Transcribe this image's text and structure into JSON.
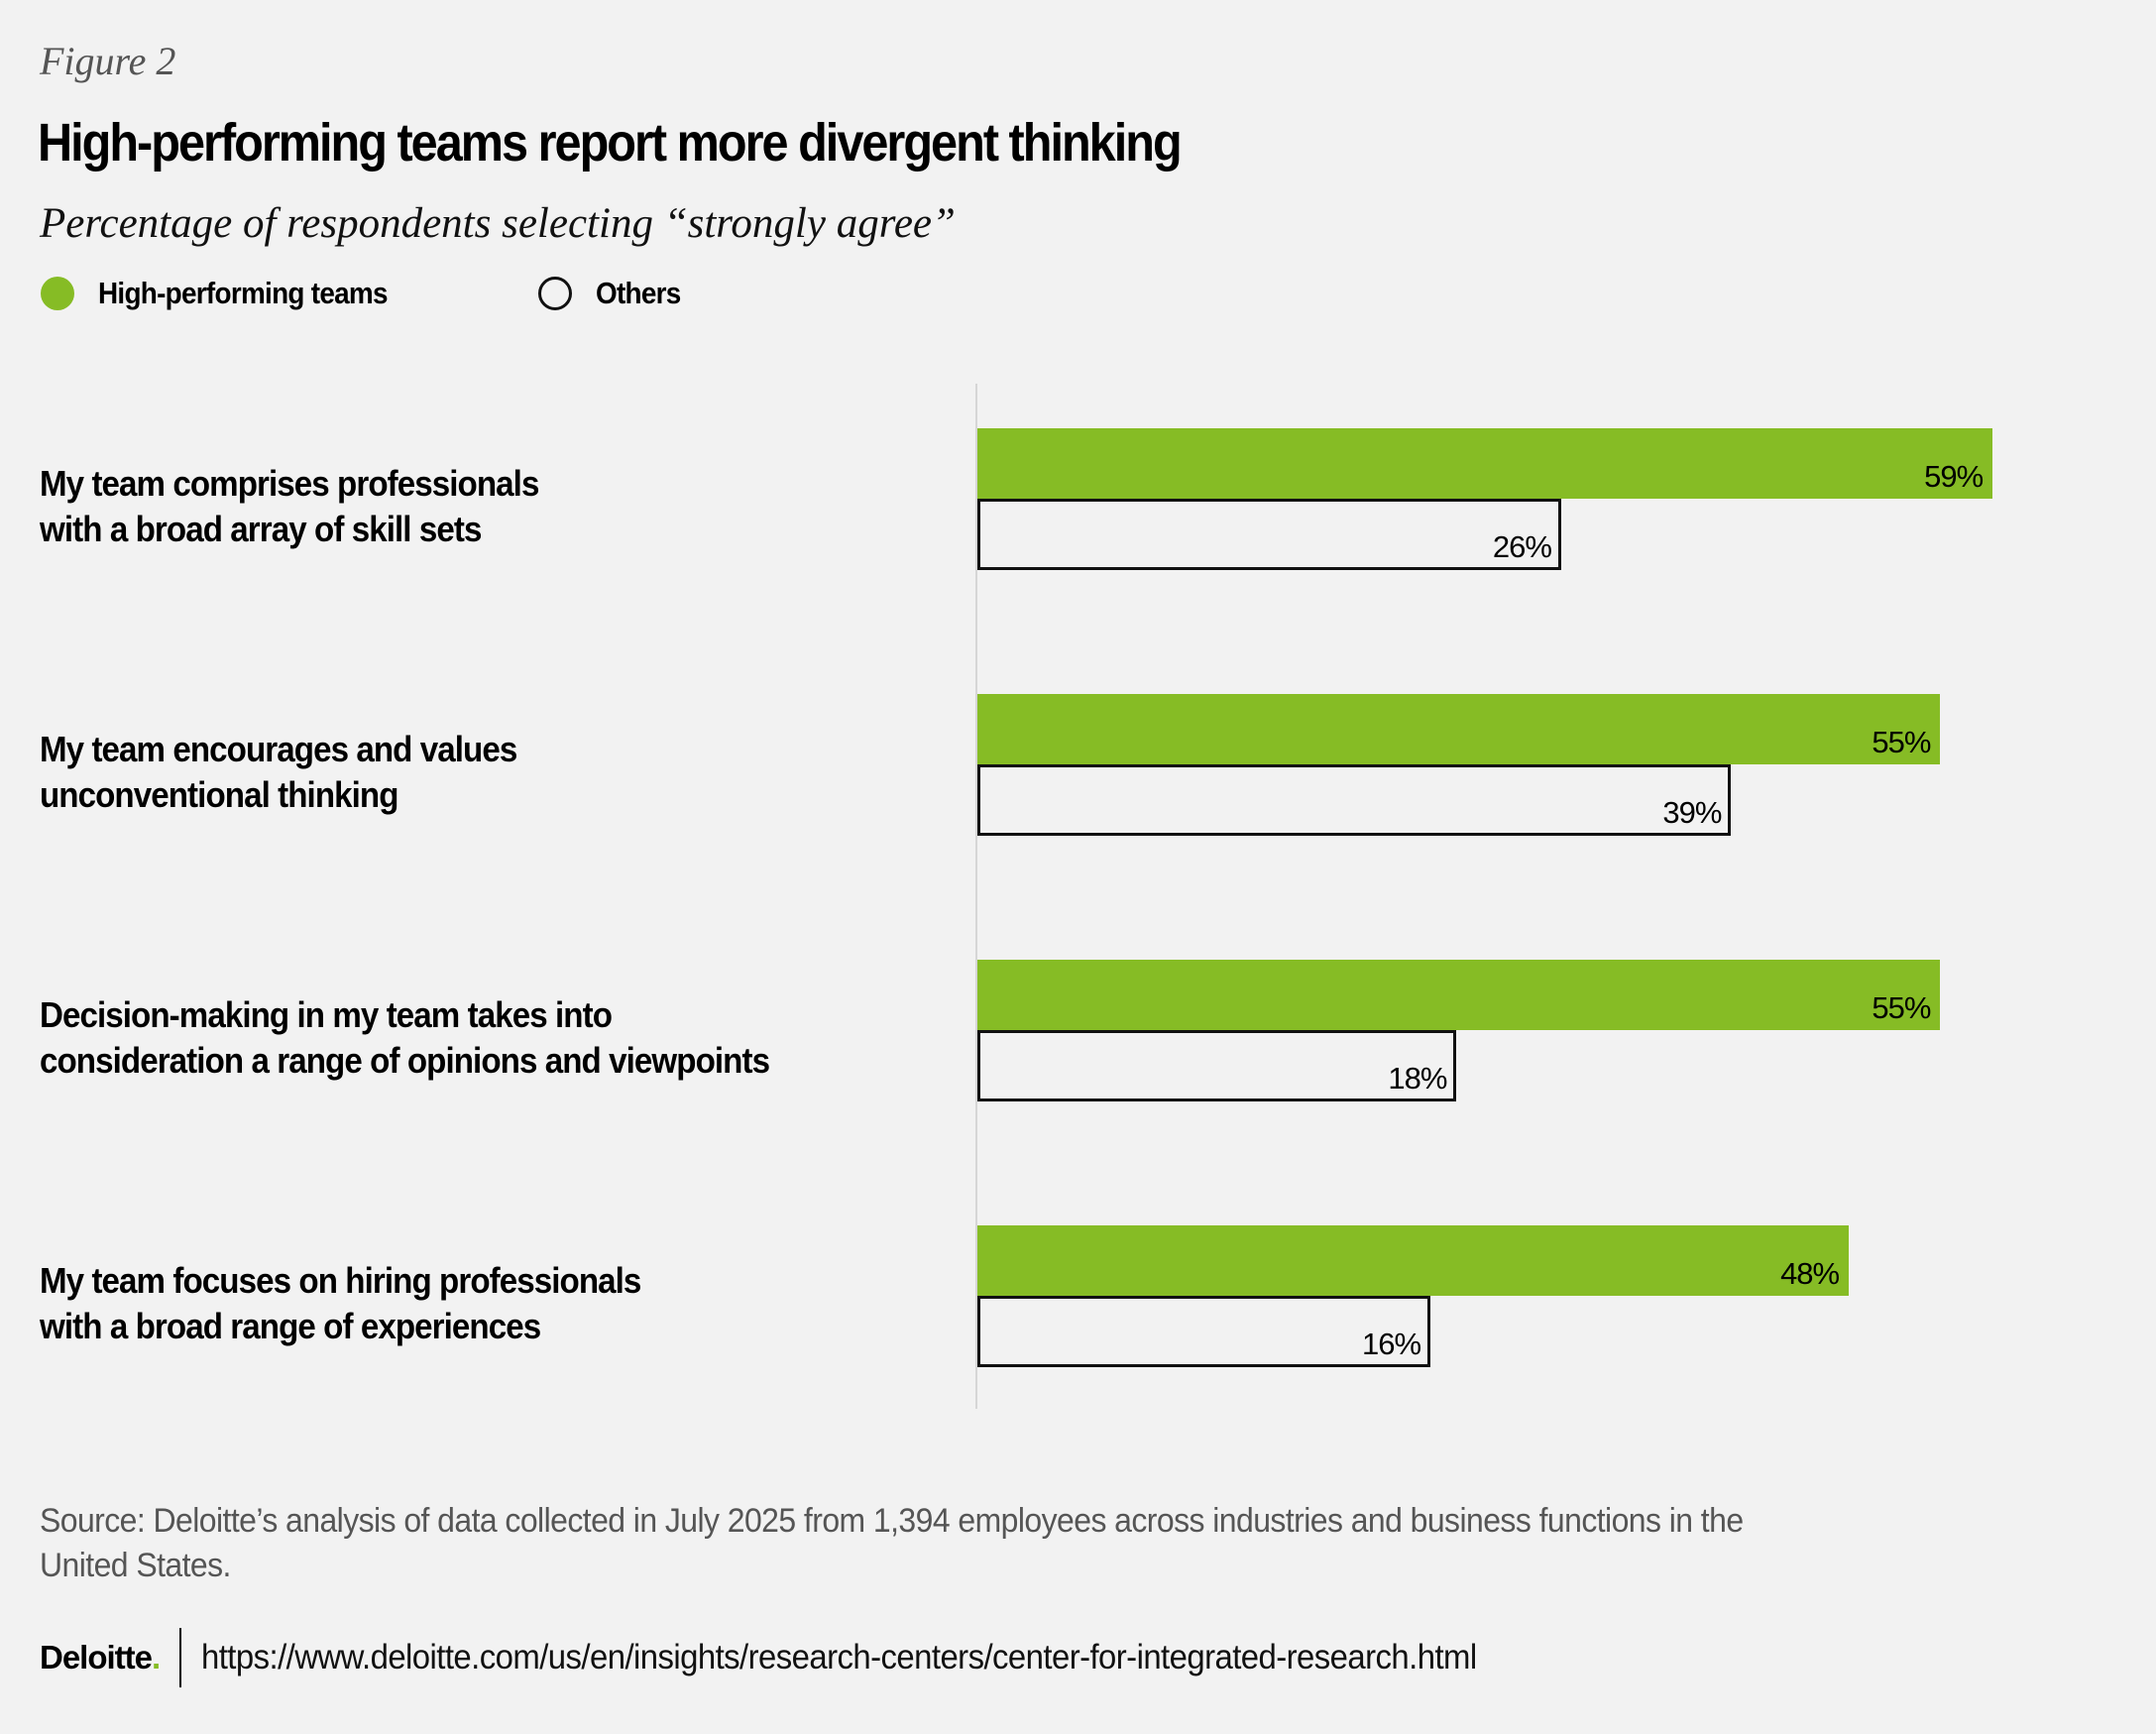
{
  "figure_label": "Figure 2",
  "colors": {
    "high_performing": "#86bc25",
    "others_fill": "#f2f2f2",
    "others_border": "#111111",
    "axis": "#d6d6d6",
    "background": "#f2f2f2"
  },
  "legend": [
    {
      "label": "High-performing teams",
      "icon": "filled-circle-icon"
    },
    {
      "label": "Others",
      "icon": "hollow-circle-icon"
    }
  ],
  "chart_data": {
    "type": "bar",
    "orientation": "horizontal",
    "title": "High-performing teams report more divergent thinking",
    "subtitle": "Percentage of respondents selecting “strongly agree”",
    "xlabel": "",
    "ylabel": "",
    "unit": "%",
    "grid": false,
    "legend_position": "top-left",
    "categories": [
      "My team comprises professionals\nwith a broad array of skill sets",
      "My team encourages and values\nunconventional thinking",
      "Decision-making in my team takes into\nconsideration a range of opinions and viewpoints",
      "My team focuses on hiring professionals\nwith a broad range of experiences"
    ],
    "series": [
      {
        "name": "High-performing teams",
        "values": [
          59,
          55,
          55,
          48
        ],
        "labels": [
          "59%",
          "55%",
          "55%",
          "48%"
        ]
      },
      {
        "name": "Others",
        "values": [
          26,
          39,
          18,
          16
        ],
        "labels": [
          "26%",
          "39%",
          "18%",
          "16%"
        ]
      }
    ]
  },
  "footer": {
    "source": "Source: Deloitte’s analysis of data collected in July 2025 from 1,394 employees across industries and business functions in the United States.",
    "logo_text": "Deloitte",
    "logo_dot": ".",
    "url": "https://www.deloitte.com/us/en/insights/research-centers/center-for-integrated-research.html"
  }
}
